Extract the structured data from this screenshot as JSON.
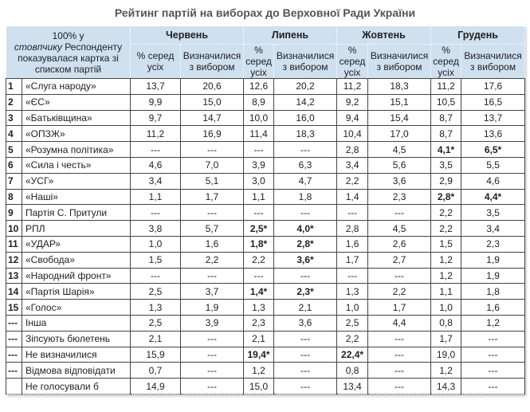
{
  "title": "Рейтинг партій на виборах до Верховної Ради України",
  "header": {
    "corner_line1": "100% у",
    "corner_italic": "стовпчику",
    "corner_rest": " Респонденту показувалася картка зі списком партій",
    "months": [
      "Червень",
      "Липень",
      "Жовтень",
      "Грудень"
    ],
    "sub_pct": "% серед усіх",
    "sub_pct_narrow": "% серед усіх",
    "sub_decided": "Визначилися з вибором"
  },
  "rows": [
    {
      "n": "1",
      "name": "«Слуга народу»",
      "v": [
        "13,7",
        "20,6",
        "12,6",
        "20,2",
        "11,2",
        "18,3",
        "11,2",
        "17,6"
      ],
      "b": []
    },
    {
      "n": "2",
      "name": "«ЄС»",
      "v": [
        "9,9",
        "15,0",
        "8,9",
        "14,2",
        "9,2",
        "15,1",
        "10,5",
        "16,5"
      ],
      "b": []
    },
    {
      "n": "3",
      "name": "«Батьківщина»",
      "v": [
        "9,7",
        "14,7",
        "10,0",
        "16,0",
        "9,4",
        "15,4",
        "8,7",
        "13,7"
      ],
      "b": []
    },
    {
      "n": "4",
      "name": "«ОПЗЖ»",
      "v": [
        "11,2",
        "16,9",
        "11,4",
        "18,3",
        "10,4",
        "17,0",
        "8,7",
        "13,6"
      ],
      "b": []
    },
    {
      "n": "5",
      "name": "«Розумна політика»",
      "v": [
        "---",
        "---",
        "---",
        "---",
        "2,8",
        "4,5",
        "4,1*",
        "6,5*"
      ],
      "b": [
        6,
        7
      ]
    },
    {
      "n": "6",
      "name": "«Сила і честь»",
      "v": [
        "4,6",
        "7,0",
        "3,9",
        "6,3",
        "3,4",
        "5,6",
        "3,5",
        "5,5"
      ],
      "b": []
    },
    {
      "n": "7",
      "name": "«УСГ»",
      "v": [
        "3,4",
        "5,1",
        "3,0",
        "4,7",
        "2,2",
        "3,6",
        "2,9",
        "4,6"
      ],
      "b": []
    },
    {
      "n": "8",
      "name": "«Наші»",
      "v": [
        "1,1",
        "1,7",
        "1,1",
        "1,8",
        "1,4",
        "2,3",
        "2,8*",
        "4,4*"
      ],
      "b": [
        6,
        7
      ]
    },
    {
      "n": "9",
      "name": "Партія С. Притули",
      "v": [
        "---",
        "---",
        "---",
        "---",
        "---",
        "---",
        "2,2",
        "3,5"
      ],
      "b": []
    },
    {
      "n": "10",
      "name": "РПЛ",
      "v": [
        "3,8",
        "5,7",
        "2,5*",
        "4,0*",
        "2,8",
        "4,5",
        "2,2",
        "3,4"
      ],
      "b": [
        2,
        3
      ]
    },
    {
      "n": "11",
      "name": "«УДАР»",
      "v": [
        "1,0",
        "1,6",
        "1,8*",
        "2,8*",
        "1,6",
        "2,6",
        "1,5",
        "2,3"
      ],
      "b": [
        2,
        3
      ]
    },
    {
      "n": "12",
      "name": "«Свобода»",
      "v": [
        "1,5",
        "2,2",
        "2,2",
        "3,6*",
        "1,7",
        "2,7",
        "1,2",
        "1,9"
      ],
      "b": [
        3
      ]
    },
    {
      "n": "13",
      "name": "«Народний фронт»",
      "v": [
        "---",
        "---",
        "---",
        "---",
        "---",
        "---",
        "1,2",
        "1,9"
      ],
      "b": []
    },
    {
      "n": "14",
      "name": "«Партія Шарія»",
      "v": [
        "2,5",
        "3,7",
        "1,4*",
        "2,3*",
        "1,3",
        "2,2",
        "1,1",
        "1,8"
      ],
      "b": [
        2,
        3
      ]
    },
    {
      "n": "15",
      "name": "«Голос»",
      "v": [
        "1,3",
        "1,9",
        "1,3",
        "2,1",
        "1,0",
        "1,7",
        "1,0",
        "1,6"
      ],
      "b": []
    },
    {
      "n": "---",
      "name": "Інша",
      "v": [
        "2,5",
        "3,9",
        "2,3",
        "3,6",
        "2,5",
        "4,4",
        "0,8",
        "1,2"
      ],
      "b": []
    },
    {
      "n": "---",
      "name": "Зіпсують бюлетень",
      "v": [
        "2,1",
        "---",
        "2,1",
        "---",
        "2,2",
        "---",
        "1,7",
        "---"
      ],
      "b": []
    },
    {
      "n": "---",
      "name": "Не визначилися",
      "v": [
        "15,9",
        "---",
        "19,4*",
        "---",
        "22,4*",
        "---",
        "19,0",
        "---"
      ],
      "b": [
        2,
        4
      ]
    },
    {
      "n": "---",
      "name": "Відмова відповідати",
      "v": [
        "0,7",
        "---",
        "1,2",
        "---",
        "0,8",
        "---",
        "1,2",
        "---"
      ],
      "b": []
    },
    {
      "n": "",
      "name": "Не голосували б",
      "v": [
        "14,9",
        "---",
        "15,0",
        "---",
        "13,4",
        "---",
        "14,3",
        "---"
      ],
      "b": []
    }
  ]
}
